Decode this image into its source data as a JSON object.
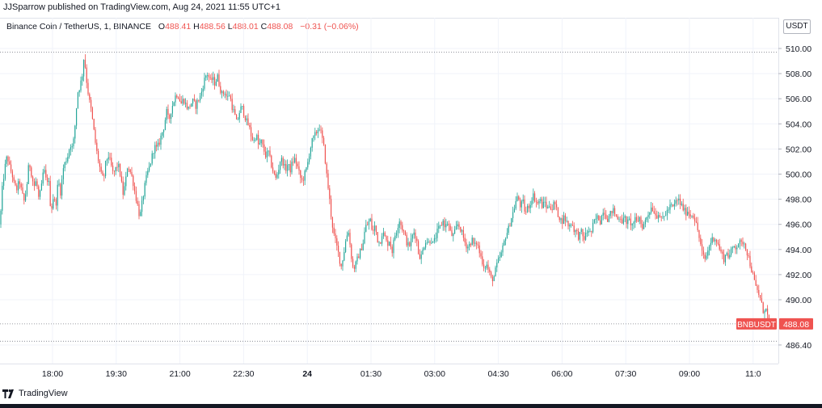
{
  "header": {
    "publisher": "JJSparrow published on TradingView.com, Aug 24, 2021 11:55 UTC+1"
  },
  "legend": {
    "symbol": "Binance Coin / TetherUS, 1, BINANCE",
    "o_label": "O",
    "o_value": "488.41",
    "h_label": "H",
    "h_value": "488.56",
    "l_label": "L",
    "l_value": "488.01",
    "c_label": "C",
    "c_value": "488.08",
    "change": "−0.31 (−0.06%)"
  },
  "currency": "USDT",
  "footer": {
    "brand": "TradingView"
  },
  "colors": {
    "up": "#26a69a",
    "down": "#ef5350",
    "grid": "#f0f3fa",
    "axis_text": "#131722"
  },
  "chart_data": {
    "type": "candlestick",
    "ylim": [
      485.5,
      511.5
    ],
    "y_ticks": [
      "510.00",
      "508.00",
      "506.00",
      "504.00",
      "502.00",
      "500.00",
      "498.00",
      "496.00",
      "494.00",
      "492.00",
      "490.00",
      "486.40"
    ],
    "x_ticks": [
      "18:00",
      "19:30",
      "21:00",
      "22:30",
      "24",
      "01:30",
      "03:00",
      "04:30",
      "06:00",
      "07:30",
      "09:00",
      "11:0"
    ],
    "x_tick_bold": "24",
    "price_label": {
      "symbol": "BNBUSDT",
      "value": "488.08",
      "price": 488.08
    },
    "dotted_levels": [
      509.7,
      486.7
    ],
    "path_closes": [
      [
        0,
        496
      ],
      [
        3,
        499
      ],
      [
        6,
        500.5
      ],
      [
        9,
        501.5
      ],
      [
        12,
        500.5
      ],
      [
        15,
        500
      ],
      [
        18,
        499
      ],
      [
        21,
        498.8
      ],
      [
        24,
        499.5
      ],
      [
        27,
        498.5
      ],
      [
        30,
        497.8
      ],
      [
        33,
        499
      ],
      [
        36,
        501
      ],
      [
        39,
        500
      ],
      [
        42,
        499
      ],
      [
        45,
        499.5
      ],
      [
        48,
        498
      ],
      [
        51,
        498.8
      ],
      [
        54,
        500.5
      ],
      [
        57,
        499.5
      ],
      [
        60,
        499.6
      ],
      [
        63,
        497
      ],
      [
        66,
        498.2
      ],
      [
        69,
        497.5
      ],
      [
        72,
        499.5
      ],
      [
        75,
        498.5
      ],
      [
        78,
        500.4
      ],
      [
        81,
        501
      ],
      [
        84,
        501.5
      ],
      [
        87,
        502.4
      ],
      [
        90,
        502
      ],
      [
        93,
        504
      ],
      [
        96,
        506.5
      ],
      [
        99,
        507
      ],
      [
        102,
        508
      ],
      [
        104,
        509.5
      ],
      [
        107,
        507.5
      ],
      [
        110,
        506
      ],
      [
        113,
        505
      ],
      [
        116,
        503.5
      ],
      [
        119,
        502
      ],
      [
        122,
        501
      ],
      [
        125,
        500
      ],
      [
        128,
        499.5
      ],
      [
        131,
        501
      ],
      [
        134,
        501.5
      ],
      [
        137,
        500.8
      ],
      [
        140,
        500
      ],
      [
        143,
        500.4
      ],
      [
        146,
        500.8
      ],
      [
        149,
        499.9
      ],
      [
        152,
        498.4
      ],
      [
        155,
        499.2
      ],
      [
        158,
        500.8
      ],
      [
        161,
        500.2
      ],
      [
        164,
        499.6
      ],
      [
        167,
        498.5
      ],
      [
        170,
        497.6
      ],
      [
        173,
        496.5
      ],
      [
        176,
        497.8
      ],
      [
        179,
        499
      ],
      [
        182,
        500
      ],
      [
        185,
        500.6
      ],
      [
        188,
        501.4
      ],
      [
        191,
        502.2
      ],
      [
        194,
        502
      ],
      [
        197,
        502.5
      ],
      [
        200,
        503.2
      ],
      [
        203,
        503.8
      ],
      [
        206,
        505
      ],
      [
        209,
        504.2
      ],
      [
        212,
        505.2
      ],
      [
        215,
        505.8
      ],
      [
        218,
        506.4
      ],
      [
        221,
        506.2
      ],
      [
        224,
        505.6
      ],
      [
        227,
        506
      ],
      [
        230,
        505.5
      ],
      [
        233,
        505.2
      ],
      [
        236,
        505.6
      ],
      [
        239,
        505.8
      ],
      [
        242,
        505.4
      ],
      [
        245,
        505.9
      ],
      [
        248,
        506.2
      ],
      [
        251,
        507
      ],
      [
        254,
        507.8
      ],
      [
        257,
        508
      ],
      [
        260,
        507.4
      ],
      [
        263,
        507.6
      ],
      [
        266,
        507.2
      ],
      [
        269,
        507.8
      ],
      [
        272,
        506.9
      ],
      [
        275,
        506.3
      ],
      [
        278,
        506.6
      ],
      [
        281,
        506
      ],
      [
        284,
        506.4
      ],
      [
        287,
        505.4
      ],
      [
        290,
        504.8
      ],
      [
        293,
        504
      ],
      [
        296,
        504.9
      ],
      [
        299,
        505.4
      ],
      [
        302,
        504.8
      ],
      [
        305,
        504.2
      ],
      [
        308,
        503.8
      ],
      [
        311,
        503
      ],
      [
        314,
        502.6
      ],
      [
        317,
        503.2
      ],
      [
        320,
        502.2
      ],
      [
        323,
        502.6
      ],
      [
        326,
        502
      ],
      [
        329,
        501.4
      ],
      [
        332,
        501.8
      ],
      [
        335,
        500.9
      ],
      [
        338,
        500.2
      ],
      [
        341,
        499.6
      ],
      [
        344,
        500.2
      ],
      [
        347,
        501.2
      ],
      [
        350,
        501
      ],
      [
        353,
        500.3
      ],
      [
        356,
        500.8
      ],
      [
        359,
        500.3
      ],
      [
        362,
        501
      ],
      [
        365,
        501.2
      ],
      [
        368,
        500.6
      ],
      [
        371,
        499.8
      ],
      [
        374,
        499.4
      ],
      [
        377,
        500
      ],
      [
        380,
        500.6
      ],
      [
        383,
        501.8
      ],
      [
        386,
        502.6
      ],
      [
        389,
        503
      ],
      [
        392,
        503.4
      ],
      [
        395,
        503.8
      ],
      [
        398,
        503
      ],
      [
        401,
        502
      ],
      [
        404,
        500
      ],
      [
        407,
        498.4
      ],
      [
        410,
        496.5
      ],
      [
        413,
        495.2
      ],
      [
        416,
        494.4
      ],
      [
        419,
        493.6
      ],
      [
        422,
        492.6
      ],
      [
        425,
        493.6
      ],
      [
        428,
        494.8
      ],
      [
        431,
        495.6
      ],
      [
        434,
        493.8
      ],
      [
        437,
        492.4
      ],
      [
        440,
        492.8
      ],
      [
        443,
        493.4
      ],
      [
        446,
        493.9
      ],
      [
        449,
        494.5
      ],
      [
        452,
        495.8
      ],
      [
        455,
        496
      ],
      [
        458,
        496.4
      ],
      [
        461,
        495.3
      ],
      [
        464,
        495.9
      ],
      [
        467,
        494.8
      ],
      [
        470,
        494.5
      ],
      [
        473,
        495.4
      ],
      [
        476,
        495
      ],
      [
        479,
        494.4
      ],
      [
        482,
        494.8
      ],
      [
        485,
        493.8
      ],
      [
        488,
        495
      ],
      [
        491,
        495.6
      ],
      [
        494,
        496.4
      ],
      [
        497,
        495.8
      ],
      [
        500,
        495.3
      ],
      [
        503,
        494.6
      ],
      [
        506,
        494.2
      ],
      [
        509,
        494.8
      ],
      [
        512,
        495.4
      ],
      [
        515,
        495
      ],
      [
        518,
        493.6
      ],
      [
        521,
        493.4
      ],
      [
        524,
        494.2
      ],
      [
        527,
        494.8
      ],
      [
        530,
        494.5
      ],
      [
        533,
        494.9
      ],
      [
        536,
        494.4
      ],
      [
        539,
        495
      ],
      [
        542,
        495.6
      ],
      [
        545,
        495.8
      ],
      [
        548,
        496.3
      ],
      [
        551,
        495.8
      ],
      [
        554,
        496.2
      ],
      [
        557,
        495.4
      ],
      [
        560,
        495
      ],
      [
        563,
        495.4
      ],
      [
        566,
        496
      ],
      [
        569,
        495.8
      ],
      [
        572,
        495.2
      ],
      [
        575,
        494.6
      ],
      [
        578,
        494.2
      ],
      [
        581,
        494.4
      ],
      [
        584,
        494.8
      ],
      [
        587,
        494.2
      ],
      [
        590,
        494.6
      ],
      [
        593,
        493.8
      ],
      [
        596,
        493.2
      ],
      [
        599,
        492.6
      ],
      [
        602,
        492.8
      ],
      [
        605,
        492.2
      ],
      [
        608,
        491.6
      ],
      [
        611,
        491.8
      ],
      [
        614,
        492.6
      ],
      [
        617,
        493.2
      ],
      [
        620,
        493.6
      ],
      [
        623,
        494.4
      ],
      [
        626,
        495.2
      ],
      [
        629,
        495.6
      ],
      [
        632,
        496.4
      ],
      [
        635,
        497
      ],
      [
        638,
        497.8
      ],
      [
        641,
        498.2
      ],
      [
        644,
        497.4
      ],
      [
        647,
        497.8
      ],
      [
        650,
        496.8
      ],
      [
        653,
        497.4
      ],
      [
        656,
        497.6
      ],
      [
        659,
        498.4
      ],
      [
        662,
        498
      ],
      [
        665,
        497.6
      ],
      [
        668,
        498
      ],
      [
        671,
        497.4
      ],
      [
        674,
        497.8
      ],
      [
        677,
        497.2
      ],
      [
        680,
        497.6
      ],
      [
        683,
        497.2
      ],
      [
        686,
        497.8
      ],
      [
        689,
        497
      ],
      [
        692,
        496.6
      ],
      [
        695,
        496.2
      ],
      [
        698,
        496.6
      ],
      [
        701,
        496.2
      ],
      [
        704,
        495.8
      ],
      [
        707,
        496.2
      ],
      [
        710,
        495.6
      ],
      [
        713,
        495.4
      ],
      [
        716,
        495
      ],
      [
        719,
        495.4
      ],
      [
        722,
        494.8
      ],
      [
        725,
        495.2
      ],
      [
        728,
        495.6
      ],
      [
        731,
        495.2
      ],
      [
        734,
        496
      ],
      [
        737,
        496.4
      ],
      [
        740,
        496.6
      ],
      [
        743,
        496.2
      ],
      [
        746,
        497.2
      ],
      [
        749,
        496.8
      ],
      [
        752,
        496.4
      ],
      [
        755,
        496.8
      ],
      [
        758,
        497.2
      ],
      [
        761,
        496.8
      ],
      [
        764,
        496.4
      ],
      [
        767,
        496.7
      ],
      [
        770,
        496.2
      ],
      [
        773,
        496.5
      ],
      [
        776,
        496.1
      ],
      [
        779,
        496.3
      ],
      [
        782,
        495.9
      ],
      [
        785,
        496.4
      ],
      [
        788,
        496.1
      ],
      [
        791,
        496.6
      ],
      [
        794,
        495.8
      ],
      [
        797,
        496
      ],
      [
        800,
        496.6
      ],
      [
        803,
        497
      ],
      [
        806,
        497.4
      ],
      [
        809,
        497.1
      ],
      [
        812,
        496.6
      ],
      [
        815,
        497
      ],
      [
        818,
        496.3
      ],
      [
        821,
        496.6
      ],
      [
        824,
        496.9
      ],
      [
        827,
        497.2
      ],
      [
        830,
        497.5
      ],
      [
        833,
        497.3
      ],
      [
        836,
        497.8
      ],
      [
        839,
        498
      ],
      [
        842,
        497.6
      ],
      [
        845,
        497.3
      ],
      [
        848,
        496.9
      ],
      [
        851,
        497.1
      ],
      [
        854,
        496.7
      ],
      [
        857,
        496.9
      ],
      [
        860,
        496.3
      ],
      [
        863,
        495.6
      ],
      [
        866,
        494.6
      ],
      [
        869,
        493.6
      ],
      [
        872,
        493.2
      ],
      [
        875,
        493.7
      ],
      [
        878,
        494.4
      ],
      [
        881,
        494.8
      ],
      [
        884,
        495
      ],
      [
        887,
        494.6
      ],
      [
        890,
        494.1
      ],
      [
        893,
        493.6
      ],
      [
        896,
        493.2
      ],
      [
        899,
        493.8
      ],
      [
        902,
        493.4
      ],
      [
        905,
        493.9
      ],
      [
        908,
        494.3
      ],
      [
        911,
        494.2
      ],
      [
        914,
        494.6
      ],
      [
        917,
        494.4
      ],
      [
        920,
        494.7
      ],
      [
        923,
        494.1
      ],
      [
        926,
        493.4
      ],
      [
        929,
        492.6
      ],
      [
        932,
        491.8
      ],
      [
        935,
        491
      ],
      [
        938,
        490.6
      ],
      [
        941,
        490
      ],
      [
        944,
        489.1
      ],
      [
        947,
        489.4
      ],
      [
        950,
        488.6
      ],
      [
        952,
        488.08
      ]
    ]
  }
}
